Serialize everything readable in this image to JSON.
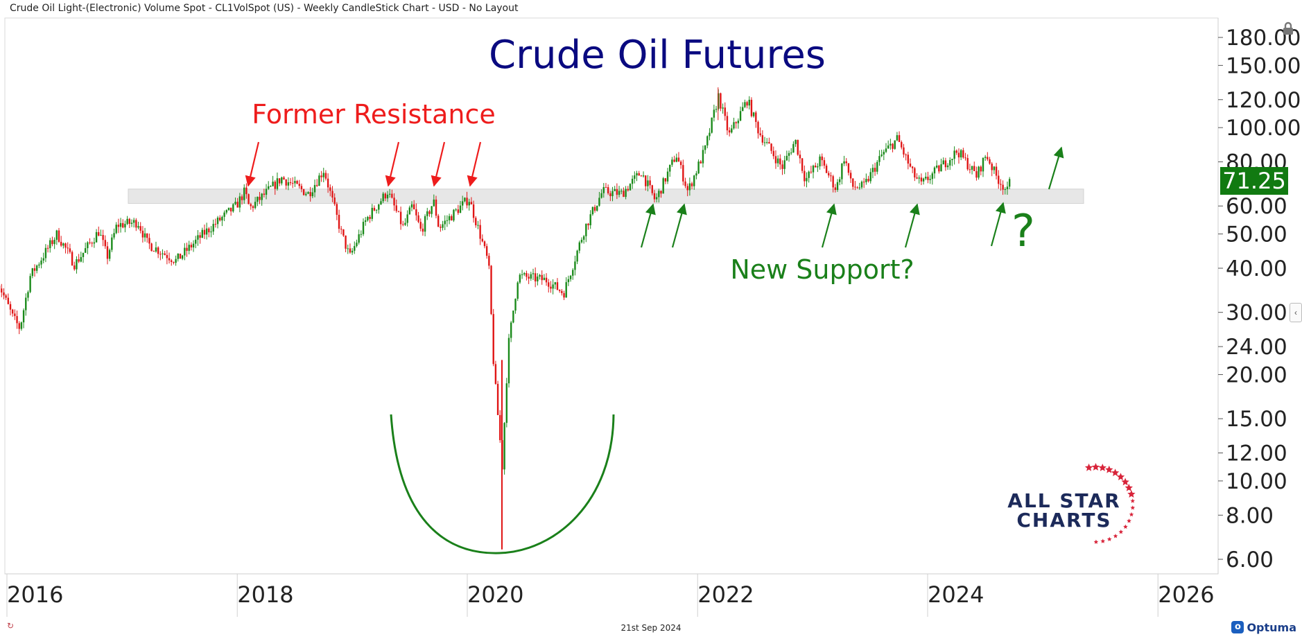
{
  "header": {
    "title": "Crude Oil Light-(Electronic) Volume Spot - CL1VolSpot (US) - Weekly CandleStick Chart - USD - No Layout"
  },
  "footer": {
    "date": "21st Sep 2024",
    "brand": "Optuma"
  },
  "colors": {
    "up": "#1a8a1a",
    "down": "#e01515",
    "title": "#0a0a80",
    "resistance": "#ee1c1c",
    "support": "#1a801a",
    "last_price_bg": "#117a11",
    "star": "#d8243a",
    "logo_text": "#1c2a5a"
  },
  "chart_data": {
    "type": "candlestick",
    "title": "Crude Oil Futures",
    "interval": "weekly",
    "x_ticks": [
      "2016",
      "2018",
      "2020",
      "2022",
      "2024",
      "2026"
    ],
    "y_scale": "log",
    "y_ticks": [
      "180.00",
      "150.00",
      "120.00",
      "100.00",
      "80.00",
      "60.00",
      "50.00",
      "40.00",
      "30.00",
      "24.00",
      "20.00",
      "15.00",
      "12.00",
      "10.00",
      "8.00",
      "6.00"
    ],
    "ylim": [
      5.4,
      200
    ],
    "last_price": "71.25",
    "zone": {
      "low": 61,
      "high": 67
    },
    "annotations": [
      {
        "id": "former-resistance",
        "text": "Former Resistance"
      },
      {
        "id": "new-support",
        "text": "New Support?"
      },
      {
        "id": "question-mark",
        "text": "?"
      }
    ],
    "approx_weekly_closes": [
      {
        "date": "2015-12-01",
        "value": 37
      },
      {
        "date": "2016-01-20",
        "value": 29
      },
      {
        "date": "2016-02-11",
        "value": 27
      },
      {
        "date": "2016-03-15",
        "value": 38
      },
      {
        "date": "2016-06-08",
        "value": 50
      },
      {
        "date": "2016-08-03",
        "value": 41
      },
      {
        "date": "2016-10-19",
        "value": 51
      },
      {
        "date": "2016-11-14",
        "value": 43
      },
      {
        "date": "2016-12-15",
        "value": 53
      },
      {
        "date": "2017-02-20",
        "value": 54
      },
      {
        "date": "2017-03-22",
        "value": 47
      },
      {
        "date": "2017-06-21",
        "value": 42
      },
      {
        "date": "2017-09-15",
        "value": 50
      },
      {
        "date": "2017-12-28",
        "value": 60
      },
      {
        "date": "2018-01-25",
        "value": 66
      },
      {
        "date": "2018-02-09",
        "value": 59
      },
      {
        "date": "2018-05-22",
        "value": 72
      },
      {
        "date": "2018-08-15",
        "value": 65
      },
      {
        "date": "2018-10-03",
        "value": 76
      },
      {
        "date": "2018-11-25",
        "value": 51
      },
      {
        "date": "2018-12-24",
        "value": 43
      },
      {
        "date": "2019-02-15",
        "value": 55
      },
      {
        "date": "2019-04-23",
        "value": 66
      },
      {
        "date": "2019-06-12",
        "value": 52
      },
      {
        "date": "2019-07-10",
        "value": 60
      },
      {
        "date": "2019-08-07",
        "value": 51
      },
      {
        "date": "2019-09-16",
        "value": 62
      },
      {
        "date": "2019-10-03",
        "value": 52
      },
      {
        "date": "2020-01-06",
        "value": 63
      },
      {
        "date": "2020-02-10",
        "value": 50
      },
      {
        "date": "2020-03-09",
        "value": 41
      },
      {
        "date": "2020-03-25",
        "value": 21
      },
      {
        "date": "2020-04-21",
        "value": 11
      },
      {
        "date": "2020-05-10",
        "value": 24
      },
      {
        "date": "2020-06-10",
        "value": 38
      },
      {
        "date": "2020-09-09",
        "value": 37
      },
      {
        "date": "2020-11-02",
        "value": 34
      },
      {
        "date": "2021-01-08",
        "value": 52
      },
      {
        "date": "2021-03-05",
        "value": 66
      },
      {
        "date": "2021-05-05",
        "value": 65
      },
      {
        "date": "2021-07-06",
        "value": 75
      },
      {
        "date": "2021-08-20",
        "value": 62
      },
      {
        "date": "2021-10-25",
        "value": 84
      },
      {
        "date": "2021-12-01",
        "value": 66
      },
      {
        "date": "2022-01-25",
        "value": 87
      },
      {
        "date": "2022-03-08",
        "value": 123
      },
      {
        "date": "2022-04-11",
        "value": 95
      },
      {
        "date": "2022-06-08",
        "value": 120
      },
      {
        "date": "2022-07-15",
        "value": 97
      },
      {
        "date": "2022-08-15",
        "value": 88
      },
      {
        "date": "2022-09-26",
        "value": 77
      },
      {
        "date": "2022-11-07",
        "value": 92
      },
      {
        "date": "2022-12-09",
        "value": 71
      },
      {
        "date": "2023-01-25",
        "value": 81
      },
      {
        "date": "2023-03-17",
        "value": 67
      },
      {
        "date": "2023-04-12",
        "value": 83
      },
      {
        "date": "2023-05-05",
        "value": 68
      },
      {
        "date": "2023-06-12",
        "value": 68
      },
      {
        "date": "2023-08-10",
        "value": 84
      },
      {
        "date": "2023-09-27",
        "value": 93
      },
      {
        "date": "2023-11-15",
        "value": 74
      },
      {
        "date": "2023-12-12",
        "value": 69
      },
      {
        "date": "2024-02-15",
        "value": 78
      },
      {
        "date": "2024-04-05",
        "value": 86
      },
      {
        "date": "2024-06-04",
        "value": 73
      },
      {
        "date": "2024-07-05",
        "value": 84
      },
      {
        "date": "2024-08-05",
        "value": 73
      },
      {
        "date": "2024-09-10",
        "value": 66
      },
      {
        "date": "2024-09-20",
        "value": 71.25
      }
    ]
  },
  "logo": {
    "line1": "ALL STAR",
    "line2": "CHARTS"
  }
}
